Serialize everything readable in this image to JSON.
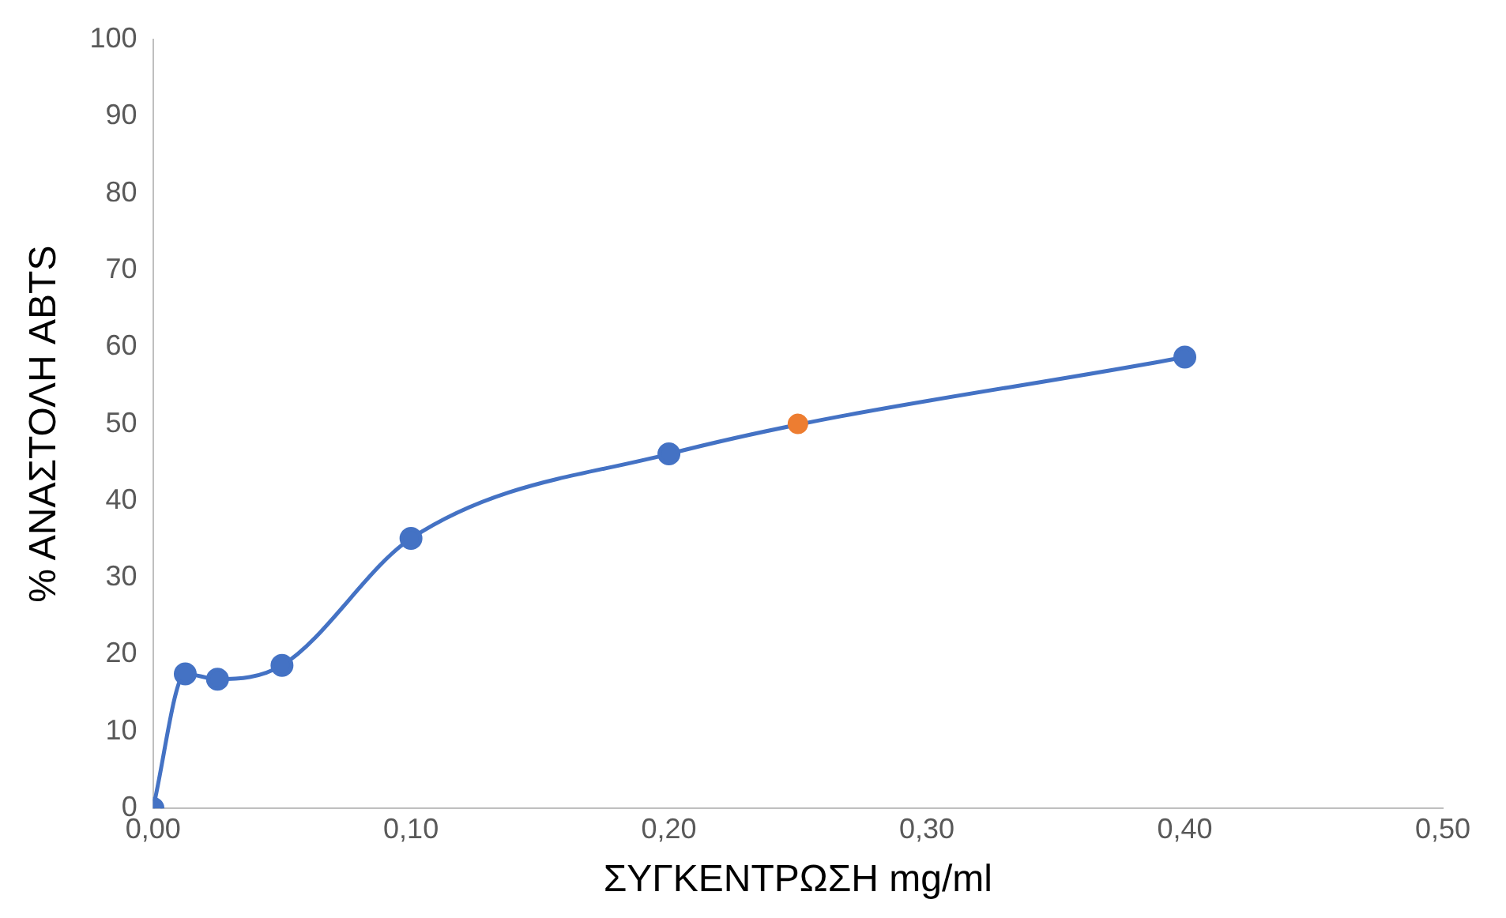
{
  "chart_data": {
    "type": "line",
    "xlabel": "ΣΥΓΚΕΝΤΡΩΣΗ mg/ml",
    "ylabel": "% ΑΝΑΣΤΟΛΗ ABTS",
    "xlim": [
      0,
      0.5
    ],
    "xticks": [
      {
        "value": 0,
        "label": "0,00"
      },
      {
        "value": 0.1,
        "label": "0,10"
      },
      {
        "value": 0.2,
        "label": "0,20"
      },
      {
        "value": 0.3,
        "label": "0,30"
      },
      {
        "value": 0.4,
        "label": "0,40"
      },
      {
        "value": 0.5,
        "label": "0,50"
      }
    ],
    "ylim": [
      0,
      100
    ],
    "yticks": [
      0,
      10,
      20,
      30,
      40,
      50,
      60,
      70,
      80,
      90,
      100
    ],
    "grid": false,
    "legend": false,
    "marker": "circle",
    "series": [
      {
        "color": "#4472c4",
        "x": [
          0,
          0.0125,
          0.025,
          0.05,
          0.1,
          0.2,
          0.4
        ],
        "values": [
          0,
          17.5,
          16.8,
          18.6,
          35.1,
          46.1,
          58.7
        ]
      },
      {
        "type": "scatter",
        "color": "#ed7d31",
        "x": [
          0.25
        ],
        "values": [
          50
        ]
      }
    ]
  }
}
